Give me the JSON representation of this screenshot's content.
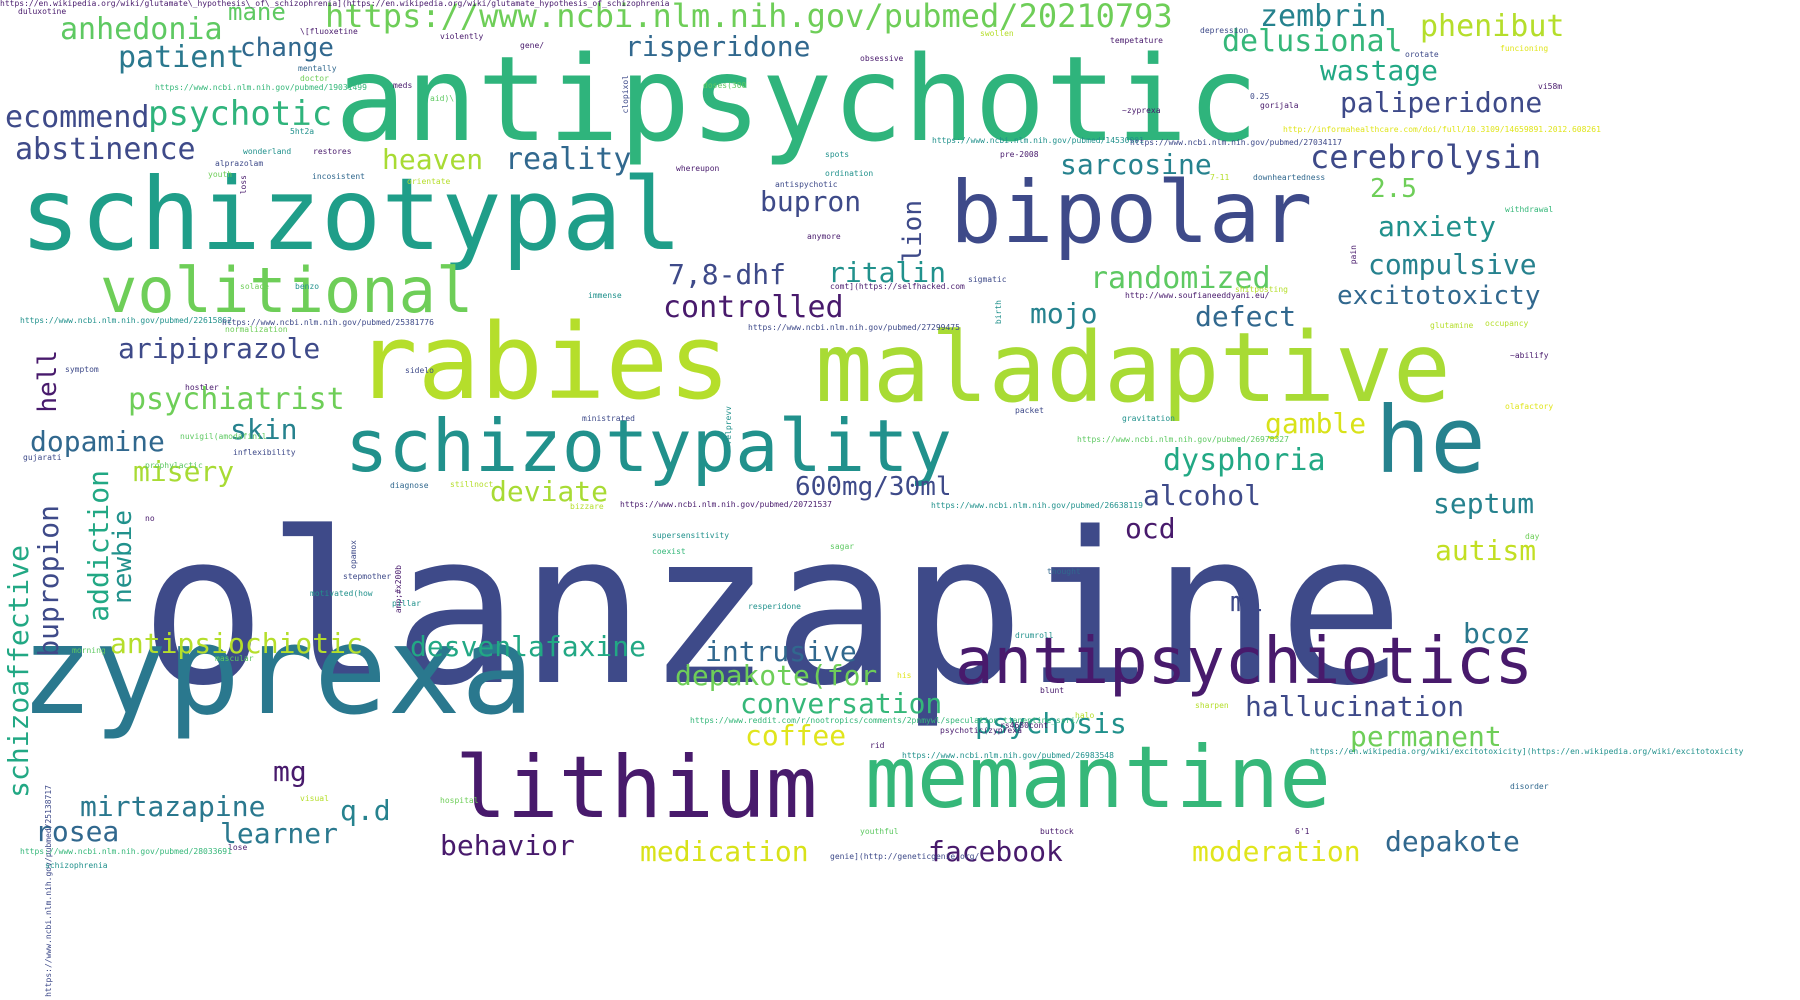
{
  "background": "#ffffff",
  "palette": {
    "purple": "#481a6c",
    "indigo": "#3e4a89",
    "blue": "#31688e",
    "teal": "#26828e",
    "green": "#1f9e89",
    "mint": "#35b779",
    "lime": "#6ece58",
    "yellowgreen": "#b5de2b",
    "yellow": "#e0e51c"
  },
  "words": [
    {
      "text": "olanzapine",
      "size": 210,
      "color": "#3e4a89"
    },
    {
      "text": "antipsychotic",
      "size": 118,
      "color": "#2fb47c"
    },
    {
      "text": "schizotypal",
      "size": 100,
      "color": "#1f9e89"
    },
    {
      "text": "zyprexa",
      "size": 122,
      "color": "#2a788e"
    },
    {
      "text": "rabies",
      "size": 104,
      "color": "#b5de2b"
    },
    {
      "text": "maladaptive",
      "size": 96,
      "color": "#a8db34"
    },
    {
      "text": "bipolar",
      "size": 86,
      "color": "#3e4a89"
    },
    {
      "text": "memantine",
      "size": 86,
      "color": "#35b779"
    },
    {
      "text": "lithium",
      "size": 86,
      "color": "#481a6c"
    },
    {
      "text": "he",
      "size": 92,
      "color": "#26828e"
    },
    {
      "text": "schizotypality",
      "size": 72,
      "color": "#21918c"
    },
    {
      "text": "antipsychiotics",
      "size": 64,
      "color": "#481a6c"
    },
    {
      "text": "volitional",
      "size": 62,
      "color": "#6ece58"
    },
    {
      "text": "https://www.ncbi.nlm.nih.gov/pubmed/20210793",
      "size": 32,
      "color": "#6ece58"
    },
    {
      "text": "anhedonia",
      "size": 30,
      "color": "#5ec962"
    },
    {
      "text": "mane",
      "size": 24,
      "color": "#5ec962"
    },
    {
      "text": "patient",
      "size": 30,
      "color": "#2a788e"
    },
    {
      "text": "change",
      "size": 26,
      "color": "#31688e"
    },
    {
      "text": "zembrin",
      "size": 30,
      "color": "#26828e"
    },
    {
      "text": "phenibut",
      "size": 30,
      "color": "#b5de2b"
    },
    {
      "text": "delusional",
      "size": 30,
      "color": "#35b779"
    },
    {
      "text": "risperidone",
      "size": 28,
      "color": "#31688e"
    },
    {
      "text": "wastage",
      "size": 28,
      "color": "#22a884"
    },
    {
      "text": "paliperidone",
      "size": 28,
      "color": "#3e4a89"
    },
    {
      "text": "psychotic",
      "size": 34,
      "color": "#2fb47c"
    },
    {
      "text": "ecommend",
      "size": 30,
      "color": "#3e4a89"
    },
    {
      "text": "abstinence",
      "size": 30,
      "color": "#3e4a89"
    },
    {
      "text": "heaven",
      "size": 28,
      "color": "#a8db34"
    },
    {
      "text": "reality",
      "size": 30,
      "color": "#31688e"
    },
    {
      "text": "sarcosine",
      "size": 28,
      "color": "#26828e"
    },
    {
      "text": "cerebrolysin",
      "size": 32,
      "color": "#3e4a89"
    },
    {
      "text": "2.5",
      "size": 26,
      "color": "#6ece58"
    },
    {
      "text": "bupron",
      "size": 28,
      "color": "#3e4a89"
    },
    {
      "text": "lion",
      "size": 26,
      "color": "#3e4a89"
    },
    {
      "text": "anxiety",
      "size": 28,
      "color": "#21918c"
    },
    {
      "text": "7,8-dhf",
      "size": 28,
      "color": "#3e4a89"
    },
    {
      "text": "ritalin",
      "size": 28,
      "color": "#21918c"
    },
    {
      "text": "randomized",
      "size": 30,
      "color": "#5ec962"
    },
    {
      "text": "compulsive",
      "size": 28,
      "color": "#26828e"
    },
    {
      "text": "excitotoxicty",
      "size": 26,
      "color": "#31688e"
    },
    {
      "text": "controlled",
      "size": 30,
      "color": "#481a6c"
    },
    {
      "text": "mojo",
      "size": 28,
      "color": "#26828e"
    },
    {
      "text": "defect",
      "size": 28,
      "color": "#31688e"
    },
    {
      "text": "aripiprazole",
      "size": 28,
      "color": "#3e4a89"
    },
    {
      "text": "hell",
      "size": 26,
      "color": "#481a6c"
    },
    {
      "text": "psychiatrist",
      "size": 30,
      "color": "#6ece58"
    },
    {
      "text": "skin",
      "size": 28,
      "color": "#26828e"
    },
    {
      "text": "gamble",
      "size": 28,
      "color": "#d8e219"
    },
    {
      "text": "dopamine",
      "size": 28,
      "color": "#31688e"
    },
    {
      "text": "misery",
      "size": 28,
      "color": "#a8db34"
    },
    {
      "text": "dysphoria",
      "size": 30,
      "color": "#22a884"
    },
    {
      "text": "deviate",
      "size": 28,
      "color": "#a8db34"
    },
    {
      "text": "600mg/30ml",
      "size": 26,
      "color": "#3e4a89"
    },
    {
      "text": "alcohol",
      "size": 28,
      "color": "#3e4a89"
    },
    {
      "text": "septum",
      "size": 28,
      "color": "#26828e"
    },
    {
      "text": "addiction",
      "size": 28,
      "color": "#22a884"
    },
    {
      "text": "newbie",
      "size": 26,
      "color": "#21918c"
    },
    {
      "text": "ocd",
      "size": 28,
      "color": "#481a6c"
    },
    {
      "text": "autism",
      "size": 28,
      "color": "#c2df23"
    },
    {
      "text": "bupropion",
      "size": 28,
      "color": "#3e4a89"
    },
    {
      "text": "schizoaffective",
      "size": 28,
      "color": "#22a884"
    },
    {
      "text": "ml",
      "size": 28,
      "color": "#3e4a89"
    },
    {
      "text": "bcoz",
      "size": 28,
      "color": "#2a788e"
    },
    {
      "text": "antipsiochiotic",
      "size": 28,
      "color": "#b5de2b"
    },
    {
      "text": "desvenlafaxine",
      "size": 28,
      "color": "#22a884"
    },
    {
      "text": "intrusive",
      "size": 28,
      "color": "#31688e"
    },
    {
      "text": "depakote(for",
      "size": 28,
      "color": "#6ece58"
    },
    {
      "text": "hallucination",
      "size": 28,
      "color": "#3e4a89"
    },
    {
      "text": "conversation",
      "size": 28,
      "color": "#35b779"
    },
    {
      "text": "permanent",
      "size": 28,
      "color": "#6ece58"
    },
    {
      "text": "coffee",
      "size": 28,
      "color": "#e0e51c"
    },
    {
      "text": "psychosis",
      "size": 28,
      "color": "#21918c"
    },
    {
      "text": "mg",
      "size": 28,
      "color": "#481a6c"
    },
    {
      "text": "mirtazapine",
      "size": 28,
      "color": "#2a788e"
    },
    {
      "text": "q.d",
      "size": 28,
      "color": "#26828e"
    },
    {
      "text": "rosea",
      "size": 28,
      "color": "#31688e"
    },
    {
      "text": "learner",
      "size": 28,
      "color": "#2a788e"
    },
    {
      "text": "behavior",
      "size": 28,
      "color": "#481a6c"
    },
    {
      "text": "medication",
      "size": 28,
      "color": "#d8e219"
    },
    {
      "text": "facebook",
      "size": 28,
      "color": "#481a6c"
    },
    {
      "text": "moderation",
      "size": 28,
      "color": "#e0e51c"
    },
    {
      "text": "depakote",
      "size": 28,
      "color": "#31688e"
    },
    {
      "text": "duluxotine",
      "size": 8,
      "color": "#481a6c"
    },
    {
      "text": "\\[fluoxetine",
      "size": 8,
      "color": "#481a6c"
    },
    {
      "text": "violently",
      "size": 8,
      "color": "#481a6c"
    },
    {
      "text": "gene/",
      "size": 8,
      "color": "#481a6c"
    },
    {
      "text": "obsessive",
      "size": 8,
      "color": "#481a6c"
    },
    {
      "text": "swollen",
      "size": 8,
      "color": "#b5de2b"
    },
    {
      "text": "tempetature",
      "size": 8,
      "color": "#481a6c"
    },
    {
      "text": "depression",
      "size": 8,
      "color": "#3e4a89"
    },
    {
      "text": "https://www.ncbi.nlm.nih.gov/pubmed/19031499",
      "size": 8,
      "color": "#35b779"
    },
    {
      "text": "mentally",
      "size": 8,
      "color": "#31688e"
    },
    {
      "text": "doctor",
      "size": 8,
      "color": "#6ece58"
    },
    {
      "text": "meds",
      "size": 8,
      "color": "#481a6c"
    },
    {
      "text": "doses(300",
      "size": 8,
      "color": "#5ec962"
    },
    {
      "text": "clopixol",
      "size": 8,
      "color": "#3e4a89"
    },
    {
      "text": "aid)\\",
      "size": 8,
      "color": "#5ec962"
    },
    {
      "text": "orotate",
      "size": 8,
      "color": "#3e4a89"
    },
    {
      "text": "funcioning",
      "size": 8,
      "color": "#e0e51c"
    },
    {
      "text": "0.25",
      "size": 8,
      "color": "#3e4a89"
    },
    {
      "text": "~zyprexa",
      "size": 8,
      "color": "#481a6c"
    },
    {
      "text": "gorijala",
      "size": 8,
      "color": "#481a6c"
    },
    {
      "text": "vi58m",
      "size": 8,
      "color": "#481a6c"
    },
    {
      "text": "5ht2a",
      "size": 8,
      "color": "#21918c"
    },
    {
      "text": "https://www.ncbi.nlm.nih.gov/pubmed/14530901",
      "size": 8,
      "color": "#21918c"
    },
    {
      "text": "https://www.ncbi.nlm.nih.gov/pubmed/27034117",
      "size": 8,
      "color": "#3e4a89"
    },
    {
      "text": "http://informahealthcare.com/doi/full/10.3109/14659891.2012.608261",
      "size": 8,
      "color": "#e0e51c"
    },
    {
      "text": "alprazolam",
      "size": 8,
      "color": "#3e4a89"
    },
    {
      "text": "wonderland",
      "size": 8,
      "color": "#21918c"
    },
    {
      "text": "restores",
      "size": 8,
      "color": "#481a6c"
    },
    {
      "text": "spots",
      "size": 8,
      "color": "#21918c"
    },
    {
      "text": "pre-2008",
      "size": 8,
      "color": "#481a6c"
    },
    {
      "text": "youth",
      "size": 8,
      "color": "#6ece58"
    },
    {
      "text": "loss",
      "size": 8,
      "color": "#481a6c"
    },
    {
      "text": "incosistent",
      "size": 8,
      "color": "#31688e"
    },
    {
      "text": "ordination",
      "size": 8,
      "color": "#21918c"
    },
    {
      "text": "whereupon",
      "size": 8,
      "color": "#481a6c"
    },
    {
      "text": "antispychotic",
      "size": 8,
      "color": "#3e4a89"
    },
    {
      "text": "orientate",
      "size": 8,
      "color": "#b5de2b"
    },
    {
      "text": "7-11",
      "size": 8,
      "color": "#b5de2b"
    },
    {
      "text": "downheartedness",
      "size": 8,
      "color": "#31688e"
    },
    {
      "text": "withdrawal",
      "size": 8,
      "color": "#35b779"
    },
    {
      "text": "anymore",
      "size": 8,
      "color": "#481a6c"
    },
    {
      "text": "pain",
      "size": 8,
      "color": "#481a6c"
    },
    {
      "text": "sigmatic",
      "size": 8,
      "color": "#3e4a89"
    },
    {
      "text": "solace",
      "size": 8,
      "color": "#6ece58"
    },
    {
      "text": "benzo",
      "size": 8,
      "color": "#21918c"
    },
    {
      "text": "comt](https://selfhacked.com",
      "size": 8,
      "color": "#481a6c"
    },
    {
      "text": "birth",
      "size": 8,
      "color": "#21918c"
    },
    {
      "text": "http://www.soufianeeddyani.eu/",
      "size": 8,
      "color": "#481a6c"
    },
    {
      "text": "shitposting",
      "size": 8,
      "color": "#b5de2b"
    },
    {
      "text": "immense",
      "size": 8,
      "color": "#21918c"
    },
    {
      "text": "https://www.ncbi.nlm.nih.gov/pubmed/22615862",
      "size": 8,
      "color": "#21918c"
    },
    {
      "text": "https://www.ncbi.nlm.nih.gov/pubmed/25381776",
      "size": 8,
      "color": "#3e4a89"
    },
    {
      "text": "normalization",
      "size": 8,
      "color": "#6ece58"
    },
    {
      "text": "https://www.ncbi.nlm.nih.gov/pubmed/27299475",
      "size": 8,
      "color": "#3e4a89"
    },
    {
      "text": "glutamine",
      "size": 8,
      "color": "#b5de2b"
    },
    {
      "text": "occupancy",
      "size": 8,
      "color": "#b5de2b"
    },
    {
      "text": "~abilify",
      "size": 8,
      "color": "#481a6c"
    },
    {
      "text": "symptom",
      "size": 8,
      "color": "#3e4a89"
    },
    {
      "text": "sidelo",
      "size": 8,
      "color": "#3e4a89"
    },
    {
      "text": "hostler",
      "size": 8,
      "color": "#481a6c"
    },
    {
      "text": "packet",
      "size": 8,
      "color": "#3e4a89"
    },
    {
      "text": "olafactory",
      "size": 8,
      "color": "#e0e51c"
    },
    {
      "text": "ministrated",
      "size": 8,
      "color": "#3e4a89"
    },
    {
      "text": "relprevv",
      "size": 8,
      "color": "#21918c"
    },
    {
      "text": "gravitation",
      "size": 8,
      "color": "#21918c"
    },
    {
      "text": "nuvigil(amodafinil",
      "size": 8,
      "color": "#5ec962"
    },
    {
      "text": "https://www.ncbi.nlm.nih.gov/pubmed/26978327",
      "size": 8,
      "color": "#5ec962"
    },
    {
      "text": "inflexibility",
      "size": 8,
      "color": "#3e4a89"
    },
    {
      "text": "gujarati",
      "size": 8,
      "color": "#3e4a89"
    },
    {
      "text": "prophylactic",
      "size": 8,
      "color": "#5ec962"
    },
    {
      "text": "diagnose",
      "size": 8,
      "color": "#31688e"
    },
    {
      "text": "stillnoct",
      "size": 8,
      "color": "#b5de2b"
    },
    {
      "text": "https://www.ncbi.nlm.nih.gov/pubmed/20721537",
      "size": 8,
      "color": "#481a6c"
    },
    {
      "text": "https://www.ncbi.nlm.nih.gov/pubmed/26638119",
      "size": 8,
      "color": "#21918c"
    },
    {
      "text": "bizzare",
      "size": 8,
      "color": "#b5de2b"
    },
    {
      "text": "no",
      "size": 8,
      "color": "#481a6c"
    },
    {
      "text": "opamox",
      "size": 8,
      "color": "#3e4a89"
    },
    {
      "text": "supersensitivity",
      "size": 8,
      "color": "#21918c"
    },
    {
      "text": "coexist",
      "size": 8,
      "color": "#35b779"
    },
    {
      "text": "sagar",
      "size": 8,
      "color": "#5ec962"
    },
    {
      "text": "day",
      "size": 8,
      "color": "#6ece58"
    },
    {
      "text": "amp;#x200b",
      "size": 8,
      "color": "#481a6c"
    },
    {
      "text": "stepmother",
      "size": 8,
      "color": "#3e4a89"
    },
    {
      "text": "thought",
      "size": 8,
      "color": "#31688e"
    },
    {
      "text": "motivated(how",
      "size": 8,
      "color": "#21918c"
    },
    {
      "text": "pillar",
      "size": 8,
      "color": "#21918c"
    },
    {
      "text": "resperidone",
      "size": 8,
      "color": "#21918c"
    },
    {
      "text": "morning",
      "size": 8,
      "color": "#5ec962"
    },
    {
      "text": "mascular",
      "size": 8,
      "color": "#5ec962"
    },
    {
      "text": "drumroll",
      "size": 8,
      "color": "#21918c"
    },
    {
      "text": "his",
      "size": 8,
      "color": "#e0e51c"
    },
    {
      "text": "blunt",
      "size": 8,
      "color": "#481a6c"
    },
    {
      "text": "halo",
      "size": 8,
      "color": "#b5de2b"
    },
    {
      "text": "sharpen",
      "size": 8,
      "color": "#b5de2b"
    },
    {
      "text": "https://www.reddit.com/r/nootropics/comments/2pnmywl/speculation_tianeptine_ssri/",
      "size": 8,
      "color": "#35b779"
    },
    {
      "text": "psychotic(zyprexa",
      "size": 8,
      "color": "#481a6c"
    },
    {
      "text": "rs4680cont",
      "size": 8,
      "color": "#481a6c"
    },
    {
      "text": "rid",
      "size": 8,
      "color": "#481a6c"
    },
    {
      "text": "https://en.wikipedia.org/wiki/excitotoxicity](https://en.wikipedia.org/wiki/excitotoxicity",
      "size": 8,
      "color": "#21918c"
    },
    {
      "text": "https://www.ncbi.nlm.nih.gov/pubmed/26983548",
      "size": 8,
      "color": "#21918c"
    },
    {
      "text": "https://www.ncbi.nlm.nih.gov/pubmed/25138717",
      "size": 8,
      "color": "#3e4a89"
    },
    {
      "text": "visual",
      "size": 8,
      "color": "#b5de2b"
    },
    {
      "text": "hospital",
      "size": 8,
      "color": "#6ece58"
    },
    {
      "text": "disorder",
      "size": 8,
      "color": "#31688e"
    },
    {
      "text": "youthful",
      "size": 8,
      "color": "#5ec962"
    },
    {
      "text": "buttock",
      "size": 8,
      "color": "#481a6c"
    },
    {
      "text": "6'1",
      "size": 8,
      "color": "#481a6c"
    },
    {
      "text": "lose",
      "size": 8,
      "color": "#481a6c"
    },
    {
      "text": "https://www.ncbi.nlm.nih.gov/pubmed/28033691",
      "size": 8,
      "color": "#35b779"
    },
    {
      "text": "genie](http://geneticgenie.org/",
      "size": 8,
      "color": "#3e4a89"
    },
    {
      "text": "schizophrenia",
      "size": 8,
      "color": "#21918c"
    },
    {
      "text": "https://en.wikipedia.org/wiki/glutamate\\_hypothesis\\_of\\_schizophrenia](https://en.wikipedia.org/wiki/glutamate_hypothesis_of_schizophrenia",
      "size": 8,
      "color": "#481a6c"
    }
  ]
}
